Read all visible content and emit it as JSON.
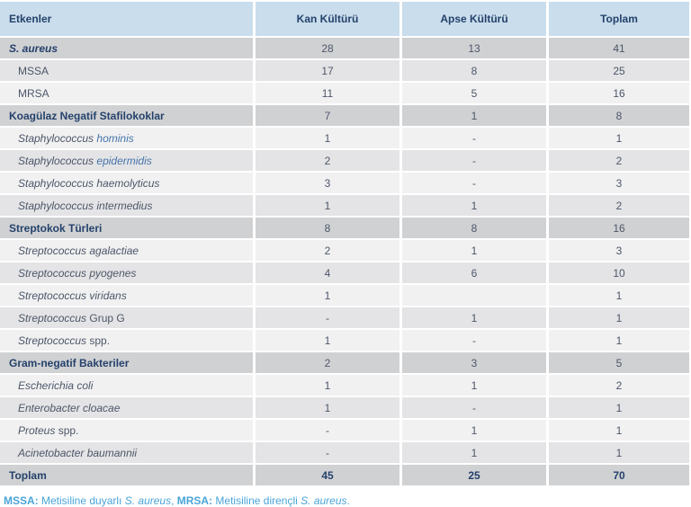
{
  "colors": {
    "header_bg": "#c9ddec",
    "section_row_bg": "#d0d1d3",
    "row_alt_bg": "#e4e4e6",
    "row_bg": "#f1f1f2",
    "heading_text": "#25426b",
    "body_text": "#4d5668",
    "species_link": "#4674a9",
    "footnote_text": "#4aa4d8"
  },
  "table": {
    "columns": [
      "Etkenler",
      "Kan Kültürü",
      "Apse Kültürü",
      "Toplam"
    ],
    "rows": [
      {
        "kind": "section",
        "bg": "dark",
        "label": [
          {
            "t": "S. aureus",
            "s": "b i"
          }
        ],
        "values": [
          "28",
          "13",
          "41"
        ]
      },
      {
        "kind": "sub",
        "bg": "medium",
        "label": [
          {
            "t": "MSSA",
            "s": ""
          }
        ],
        "values": [
          "17",
          "8",
          "25"
        ]
      },
      {
        "kind": "sub",
        "bg": "light",
        "label": [
          {
            "t": "MRSA",
            "s": ""
          }
        ],
        "values": [
          "11",
          "5",
          "16"
        ]
      },
      {
        "kind": "section",
        "bg": "dark",
        "label": [
          {
            "t": "Koagülaz Negatif Stafilokoklar",
            "s": "b"
          }
        ],
        "values": [
          "7",
          "1",
          "8"
        ]
      },
      {
        "kind": "sub",
        "bg": "light",
        "label": [
          {
            "t": "Staphylococcus ",
            "s": "i"
          },
          {
            "t": "hominis",
            "s": "i blue"
          }
        ],
        "values": [
          "1",
          "-",
          "1"
        ]
      },
      {
        "kind": "sub",
        "bg": "medium",
        "label": [
          {
            "t": "Staphylococcus ",
            "s": "i"
          },
          {
            "t": "epidermidis",
            "s": "i blue"
          }
        ],
        "values": [
          "2",
          "-",
          "2"
        ]
      },
      {
        "kind": "sub",
        "bg": "light",
        "label": [
          {
            "t": "Staphylococcus haemolyticus",
            "s": "i"
          }
        ],
        "values": [
          "3",
          "-",
          "3"
        ]
      },
      {
        "kind": "sub",
        "bg": "medium",
        "label": [
          {
            "t": "Staphylococcus intermedius",
            "s": "i"
          }
        ],
        "values": [
          "1",
          "1",
          "2"
        ]
      },
      {
        "kind": "section",
        "bg": "dark",
        "label": [
          {
            "t": "Streptokok Türleri",
            "s": "b"
          }
        ],
        "values": [
          "8",
          "8",
          "16"
        ]
      },
      {
        "kind": "sub",
        "bg": "light",
        "label": [
          {
            "t": "Streptococcus agalactiae",
            "s": "i"
          }
        ],
        "values": [
          "2",
          "1",
          "3"
        ]
      },
      {
        "kind": "sub",
        "bg": "medium",
        "label": [
          {
            "t": "Streptococcus pyogenes",
            "s": "i"
          }
        ],
        "values": [
          "4",
          "6",
          "10"
        ]
      },
      {
        "kind": "sub",
        "bg": "light",
        "label": [
          {
            "t": "Streptococcus viridans",
            "s": "i"
          }
        ],
        "values": [
          "1",
          "",
          "1"
        ]
      },
      {
        "kind": "sub",
        "bg": "medium",
        "label": [
          {
            "t": "Streptococcus",
            "s": "i"
          },
          {
            "t": " Grup G",
            "s": ""
          }
        ],
        "values": [
          "-",
          "1",
          "1"
        ]
      },
      {
        "kind": "sub",
        "bg": "light",
        "label": [
          {
            "t": "Streptococcus",
            "s": "i"
          },
          {
            "t": " spp.",
            "s": ""
          }
        ],
        "values": [
          "1",
          "-",
          "1"
        ]
      },
      {
        "kind": "section",
        "bg": "dark",
        "label": [
          {
            "t": "Gram-negatif Bakteriler",
            "s": "b"
          }
        ],
        "values": [
          "2",
          "3",
          "5"
        ]
      },
      {
        "kind": "sub",
        "bg": "light",
        "label": [
          {
            "t": "Escherichia coli",
            "s": "i"
          }
        ],
        "values": [
          "1",
          "1",
          "2"
        ]
      },
      {
        "kind": "sub",
        "bg": "medium",
        "label": [
          {
            "t": "Enterobacter cloacae",
            "s": "i"
          }
        ],
        "values": [
          "1",
          "-",
          "1"
        ]
      },
      {
        "kind": "sub",
        "bg": "light",
        "label": [
          {
            "t": "Proteus",
            "s": "i"
          },
          {
            "t": " spp.",
            "s": ""
          }
        ],
        "values": [
          "-",
          "1",
          "1"
        ]
      },
      {
        "kind": "sub",
        "bg": "medium",
        "label": [
          {
            "t": "Acinetobacter baumannii",
            "s": "i"
          }
        ],
        "values": [
          "-",
          "1",
          "1"
        ]
      },
      {
        "kind": "total",
        "bg": "dark",
        "label": [
          {
            "t": "Toplam",
            "s": "b"
          }
        ],
        "values": [
          "45",
          "25",
          "70"
        ]
      }
    ]
  },
  "footnote": {
    "parts": [
      {
        "t": "MSSA:",
        "s": "b"
      },
      {
        "t": " Metisiline duyarlı ",
        "s": ""
      },
      {
        "t": "S. aureus",
        "s": "i"
      },
      {
        "t": ", ",
        "s": ""
      },
      {
        "t": "MRSA:",
        "s": "b"
      },
      {
        "t": " Metisiline dirençli ",
        "s": ""
      },
      {
        "t": "S. aureus",
        "s": "i"
      },
      {
        "t": ".",
        "s": ""
      }
    ]
  }
}
